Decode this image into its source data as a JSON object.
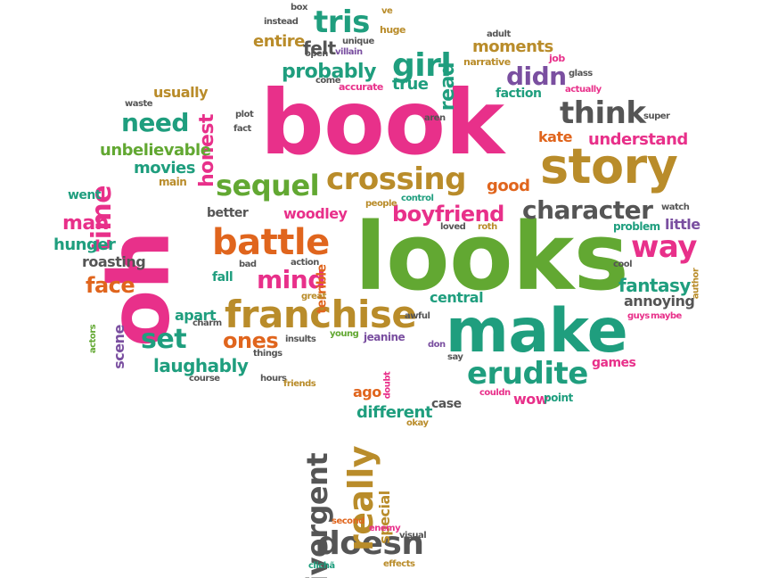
{
  "palette": {
    "pink": "#e8308a",
    "green": "#62a832",
    "teal": "#1f9e7e",
    "gold": "#b98c2a",
    "orange": "#e0651d",
    "purple": "#7a4fa0",
    "grey": "#555555",
    "lime": "#8cb42b"
  },
  "words": [
    {
      "text": "book",
      "color": "pink"
    },
    {
      "text": "looks",
      "color": "green"
    },
    {
      "text": "oh",
      "color": "pink"
    },
    {
      "text": "make",
      "color": "teal"
    },
    {
      "text": "story",
      "color": "gold"
    },
    {
      "text": "franchise",
      "color": "gold"
    },
    {
      "text": "battle",
      "color": "orange"
    },
    {
      "text": "crossing",
      "color": "gold"
    },
    {
      "text": "sequel",
      "color": "green"
    },
    {
      "text": "character",
      "color": "grey"
    },
    {
      "text": "erudite",
      "color": "teal"
    },
    {
      "text": "think",
      "color": "grey"
    },
    {
      "text": "doesn",
      "color": "grey"
    },
    {
      "text": "really",
      "color": "gold"
    },
    {
      "text": "divergent",
      "color": "grey"
    },
    {
      "text": "tris",
      "color": "teal"
    },
    {
      "text": "girl",
      "color": "teal"
    },
    {
      "text": "need",
      "color": "teal"
    },
    {
      "text": "time",
      "color": "pink"
    },
    {
      "text": "way",
      "color": "pink"
    },
    {
      "text": "set",
      "color": "teal"
    },
    {
      "text": "mind",
      "color": "pink"
    },
    {
      "text": "boyfriend",
      "color": "pink"
    },
    {
      "text": "ones",
      "color": "orange"
    },
    {
      "text": "didn",
      "color": "purple"
    },
    {
      "text": "probably",
      "color": "teal"
    },
    {
      "text": "face",
      "color": "orange"
    },
    {
      "text": "honest",
      "color": "pink"
    },
    {
      "text": "fantasy",
      "color": "teal"
    },
    {
      "text": "understand",
      "color": "pink"
    },
    {
      "text": "laughably",
      "color": "teal"
    },
    {
      "text": "read",
      "color": "teal"
    },
    {
      "text": "moments",
      "color": "gold"
    },
    {
      "text": "man",
      "color": "pink"
    },
    {
      "text": "hunger",
      "color": "teal"
    },
    {
      "text": "different",
      "color": "teal"
    },
    {
      "text": "movies",
      "color": "teal"
    },
    {
      "text": "unbelievable",
      "color": "green"
    },
    {
      "text": "entire",
      "color": "gold"
    },
    {
      "text": "felt",
      "color": "grey"
    },
    {
      "text": "usually",
      "color": "gold"
    },
    {
      "text": "roasting",
      "color": "grey"
    },
    {
      "text": "woodley",
      "color": "pink"
    },
    {
      "text": "good",
      "color": "orange"
    },
    {
      "text": "true",
      "color": "teal"
    },
    {
      "text": "annoying",
      "color": "grey"
    },
    {
      "text": "central",
      "color": "teal"
    },
    {
      "text": "scene",
      "color": "purple"
    },
    {
      "text": "apart",
      "color": "teal"
    },
    {
      "text": "games",
      "color": "pink"
    },
    {
      "text": "wow",
      "color": "pink"
    },
    {
      "text": "special",
      "color": "gold"
    },
    {
      "text": "ago",
      "color": "orange"
    },
    {
      "text": "better",
      "color": "grey"
    },
    {
      "text": "fall",
      "color": "teal"
    },
    {
      "text": "kate",
      "color": "orange"
    },
    {
      "text": "little",
      "color": "purple"
    },
    {
      "text": "terrible",
      "color": "orange"
    },
    {
      "text": "faction",
      "color": "teal"
    },
    {
      "text": "went",
      "color": "teal"
    },
    {
      "text": "problem",
      "color": "teal"
    },
    {
      "text": "case",
      "color": "grey"
    },
    {
      "text": "jeanine",
      "color": "purple"
    },
    {
      "text": "point",
      "color": "teal"
    },
    {
      "text": "main",
      "color": "gold"
    },
    {
      "text": "narrative",
      "color": "gold"
    },
    {
      "text": "accurate",
      "color": "pink"
    },
    {
      "text": "huge",
      "color": "gold"
    },
    {
      "text": "instead",
      "color": "grey"
    },
    {
      "text": "box",
      "color": "grey"
    },
    {
      "text": "ve",
      "color": "gold"
    },
    {
      "text": "unique",
      "color": "grey"
    },
    {
      "text": "villain",
      "color": "purple"
    },
    {
      "text": "open",
      "color": "grey"
    },
    {
      "text": "come",
      "color": "grey"
    },
    {
      "text": "adult",
      "color": "grey"
    },
    {
      "text": "job",
      "color": "pink"
    },
    {
      "text": "glass",
      "color": "grey"
    },
    {
      "text": "actually",
      "color": "pink"
    },
    {
      "text": "super",
      "color": "grey"
    },
    {
      "text": "waste",
      "color": "grey"
    },
    {
      "text": "plot",
      "color": "grey"
    },
    {
      "text": "fact",
      "color": "grey"
    },
    {
      "text": "aren",
      "color": "grey"
    },
    {
      "text": "control",
      "color": "teal"
    },
    {
      "text": "people",
      "color": "gold"
    },
    {
      "text": "loved",
      "color": "grey"
    },
    {
      "text": "roth",
      "color": "gold"
    },
    {
      "text": "watch",
      "color": "grey"
    },
    {
      "text": "cool",
      "color": "grey"
    },
    {
      "text": "author",
      "color": "gold"
    },
    {
      "text": "guys",
      "color": "pink"
    },
    {
      "text": "maybe",
      "color": "pink"
    },
    {
      "text": "bad",
      "color": "grey"
    },
    {
      "text": "action",
      "color": "grey"
    },
    {
      "text": "great",
      "color": "gold"
    },
    {
      "text": "charm",
      "color": "grey"
    },
    {
      "text": "awful",
      "color": "grey"
    },
    {
      "text": "insults",
      "color": "grey"
    },
    {
      "text": "young",
      "color": "green"
    },
    {
      "text": "actors",
      "color": "green"
    },
    {
      "text": "things",
      "color": "grey"
    },
    {
      "text": "don",
      "color": "purple"
    },
    {
      "text": "say",
      "color": "grey"
    },
    {
      "text": "course",
      "color": "grey"
    },
    {
      "text": "hours",
      "color": "grey"
    },
    {
      "text": "friends",
      "color": "gold"
    },
    {
      "text": "doubt",
      "color": "pink"
    },
    {
      "text": "couldn",
      "color": "pink"
    },
    {
      "text": "okay",
      "color": "gold"
    },
    {
      "text": "second",
      "color": "orange"
    },
    {
      "text": "enemy",
      "color": "pink"
    },
    {
      "text": "visual",
      "color": "grey"
    },
    {
      "text": "clichã",
      "color": "teal"
    },
    {
      "text": "effects",
      "color": "gold"
    }
  ]
}
